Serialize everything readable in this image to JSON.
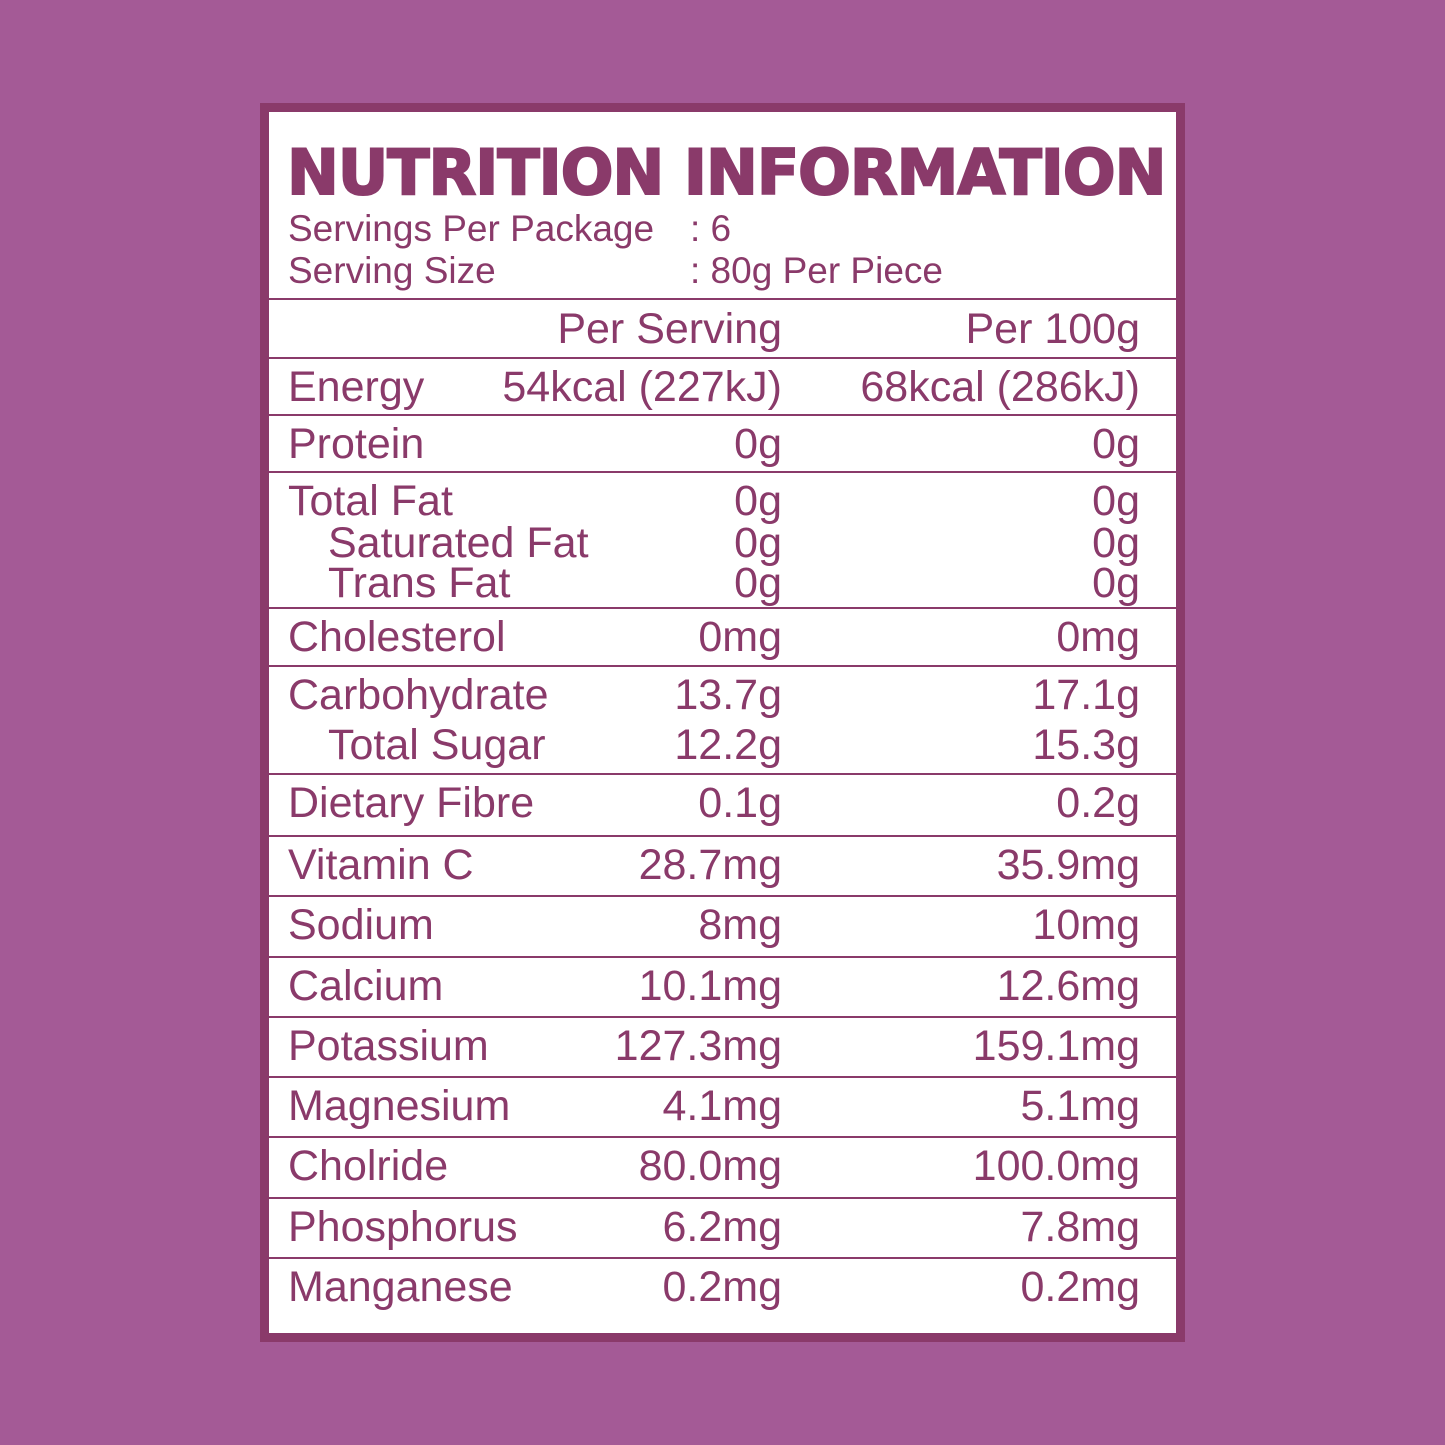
{
  "title": "NUTRITION INFORMATION",
  "servings_per_package": {
    "label": "Servings Per Package",
    "value": ": 6"
  },
  "serving_size": {
    "label": "Serving Size",
    "value": ": 80g Per Piece"
  },
  "columns": {
    "per_serving": "Per Serving",
    "per_100g": "Per 100g"
  },
  "colors": {
    "background": "#a45a96",
    "accent": "#8a3a6a",
    "panel": "#ffffff"
  },
  "rows": [
    {
      "lines": [
        {
          "label": "Energy",
          "per_serving": "54kcal (227kJ)",
          "per_100g": "68kcal (286kJ)"
        }
      ]
    },
    {
      "lines": [
        {
          "label": "Protein",
          "per_serving": "0g",
          "per_100g": "0g"
        }
      ]
    },
    {
      "lines": [
        {
          "label": "Total Fat",
          "per_serving": "0g",
          "per_100g": "0g"
        },
        {
          "label": "Saturated Fat",
          "per_serving": "0g",
          "per_100g": "0g",
          "sub": true
        },
        {
          "label": "Trans Fat",
          "per_serving": "0g",
          "per_100g": "0g",
          "sub": true
        }
      ]
    },
    {
      "lines": [
        {
          "label": "Cholesterol",
          "per_serving": "0mg",
          "per_100g": "0mg"
        }
      ]
    },
    {
      "lines": [
        {
          "label": "Carbohydrate",
          "per_serving": "13.7g",
          "per_100g": "17.1g"
        },
        {
          "label": "Total Sugar",
          "per_serving": "12.2g",
          "per_100g": "15.3g",
          "sub": true
        }
      ]
    },
    {
      "lines": [
        {
          "label": "Dietary Fibre",
          "per_serving": "0.1g",
          "per_100g": "0.2g"
        }
      ]
    },
    {
      "lines": [
        {
          "label": "Vitamin C",
          "per_serving": "28.7mg",
          "per_100g": "35.9mg"
        }
      ]
    },
    {
      "lines": [
        {
          "label": "Sodium",
          "per_serving": "8mg",
          "per_100g": "10mg"
        }
      ]
    },
    {
      "lines": [
        {
          "label": "Calcium",
          "per_serving": "10.1mg",
          "per_100g": "12.6mg"
        }
      ]
    },
    {
      "lines": [
        {
          "label": "Potassium",
          "per_serving": "127.3mg",
          "per_100g": "159.1mg"
        }
      ]
    },
    {
      "lines": [
        {
          "label": "Magnesium",
          "per_serving": "4.1mg",
          "per_100g": "5.1mg"
        }
      ]
    },
    {
      "lines": [
        {
          "label": "Cholride",
          "per_serving": "80.0mg",
          "per_100g": "100.0mg"
        }
      ]
    },
    {
      "lines": [
        {
          "label": "Phosphorus",
          "per_serving": "6.2mg",
          "per_100g": "7.8mg"
        }
      ]
    },
    {
      "lines": [
        {
          "label": "Manganese",
          "per_serving": "0.2mg",
          "per_100g": "0.2mg"
        }
      ]
    }
  ]
}
